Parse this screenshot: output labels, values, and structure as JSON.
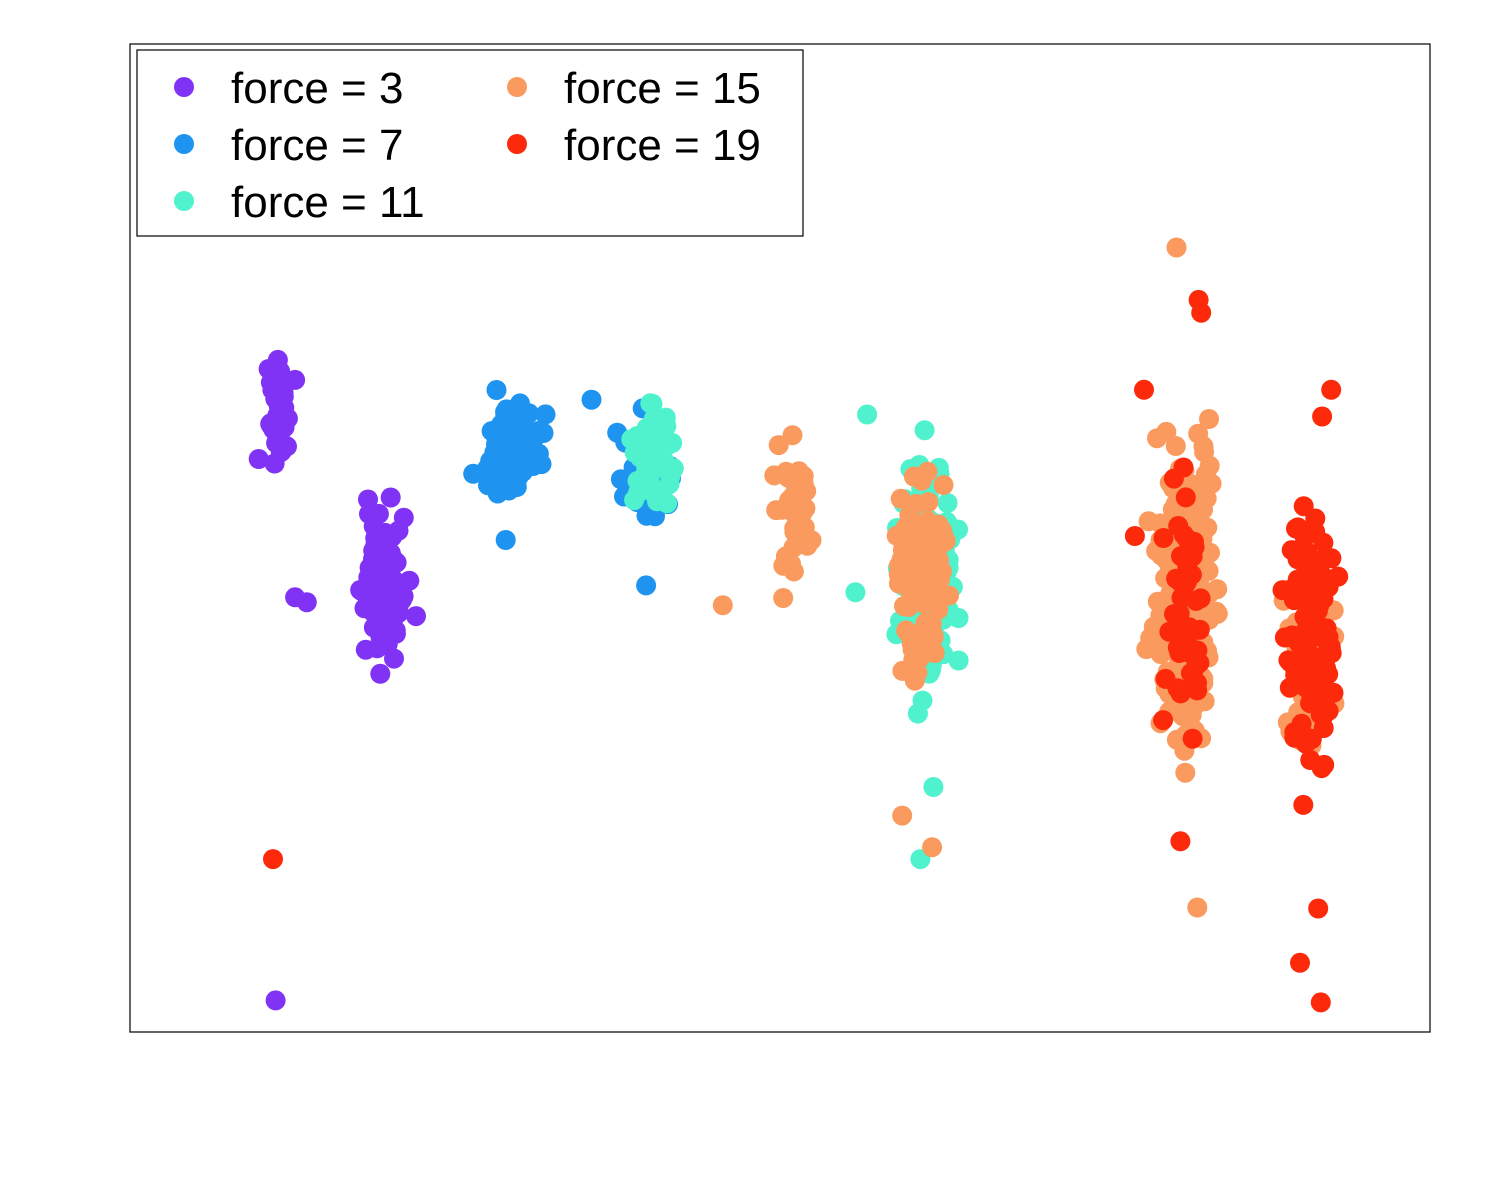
{
  "chart_data": {
    "type": "scatter",
    "title": "",
    "xlabel": "",
    "ylabel": "",
    "xlim": [
      0,
      100
    ],
    "ylim": [
      0,
      100
    ],
    "grid": false,
    "legend_position": "top-left",
    "series": [
      {
        "name": "force = 3",
        "color": "#8033f5",
        "clusters": [
          {
            "cx": 11.4,
            "cy": 63.0,
            "sx": 0.55,
            "sy": 4.5,
            "n": 60
          },
          {
            "cx": 19.5,
            "cy": 45.0,
            "sx": 1.3,
            "sy": 6.5,
            "n": 85
          }
        ],
        "points": [
          {
            "x": 11.2,
            "y": 3.2
          },
          {
            "x": 12.7,
            "y": 44.0
          },
          {
            "x": 13.6,
            "y": 43.5
          },
          {
            "x": 9.9,
            "y": 58.0
          },
          {
            "x": 12.7,
            "y": 66.0
          }
        ]
      },
      {
        "name": "force = 7",
        "color": "#1e94f0",
        "clusters": [
          {
            "cx": 29.5,
            "cy": 59.0,
            "sx": 1.6,
            "sy": 4.0,
            "n": 110
          },
          {
            "cx": 40.0,
            "cy": 57.0,
            "sx": 1.7,
            "sy": 4.5,
            "n": 60
          }
        ],
        "points": [
          {
            "x": 28.9,
            "y": 49.8
          },
          {
            "x": 35.5,
            "y": 64.0
          },
          {
            "x": 26.4,
            "y": 56.5
          },
          {
            "x": 38.0,
            "y": 54.2
          },
          {
            "x": 39.7,
            "y": 45.2
          }
        ]
      },
      {
        "name": "force = 11",
        "color": "#4ff2cc",
        "clusters": [
          {
            "cx": 40.1,
            "cy": 58.5,
            "sx": 1.4,
            "sy": 4.5,
            "n": 70
          },
          {
            "cx": 61.2,
            "cy": 46.0,
            "sx": 2.0,
            "sy": 10.0,
            "n": 140
          }
        ],
        "points": [
          {
            "x": 60.8,
            "y": 17.5
          },
          {
            "x": 61.8,
            "y": 24.8
          },
          {
            "x": 56.7,
            "y": 62.5
          },
          {
            "x": 55.8,
            "y": 44.5
          }
        ]
      },
      {
        "name": "force = 15",
        "color": "#fa9a5e",
        "clusters": [
          {
            "cx": 50.9,
            "cy": 52.0,
            "sx": 1.5,
            "sy": 6.0,
            "n": 35
          },
          {
            "cx": 60.8,
            "cy": 46.0,
            "sx": 1.8,
            "sy": 9.0,
            "n": 95
          },
          {
            "cx": 81.2,
            "cy": 44.0,
            "sx": 2.0,
            "sy": 12.0,
            "n": 230
          },
          {
            "cx": 90.5,
            "cy": 37.0,
            "sx": 1.8,
            "sy": 9.0,
            "n": 45
          }
        ],
        "points": [
          {
            "x": 80.5,
            "y": 79.4
          },
          {
            "x": 45.6,
            "y": 43.2
          },
          {
            "x": 82.1,
            "y": 12.6
          },
          {
            "x": 59.4,
            "y": 21.9
          },
          {
            "x": 61.7,
            "y": 18.7
          },
          {
            "x": 49.9,
            "y": 59.4
          }
        ]
      },
      {
        "name": "force = 19",
        "color": "#fc2a0a",
        "clusters": [
          {
            "cx": 81.2,
            "cy": 45.0,
            "sx": 1.5,
            "sy": 13.0,
            "n": 50
          },
          {
            "cx": 90.8,
            "cy": 40.0,
            "sx": 1.6,
            "sy": 12.0,
            "n": 130
          }
        ],
        "points": [
          {
            "x": 11.0,
            "y": 17.5
          },
          {
            "x": 82.2,
            "y": 74.1
          },
          {
            "x": 82.4,
            "y": 72.8
          },
          {
            "x": 91.6,
            "y": 3.0
          },
          {
            "x": 90.0,
            "y": 7.0
          },
          {
            "x": 91.4,
            "y": 12.5
          },
          {
            "x": 92.4,
            "y": 65.0
          },
          {
            "x": 91.7,
            "y": 62.3
          },
          {
            "x": 80.8,
            "y": 19.3
          },
          {
            "x": 79.5,
            "y": 50.0
          },
          {
            "x": 78.0,
            "y": 65.0
          },
          {
            "x": 77.3,
            "y": 50.2
          }
        ]
      }
    ]
  }
}
